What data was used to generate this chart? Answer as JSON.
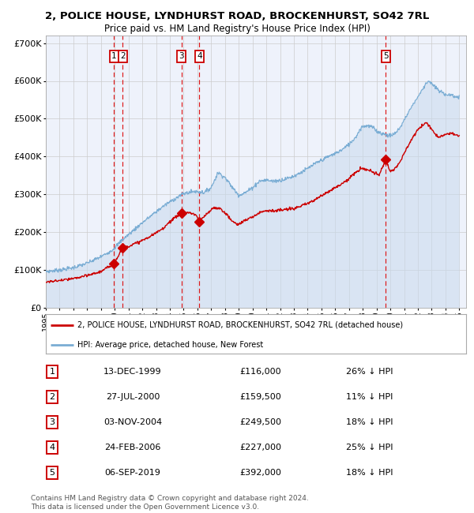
{
  "title": "2, POLICE HOUSE, LYNDHURST ROAD, BROCKENHURST, SO42 7RL",
  "subtitle": "Price paid vs. HM Land Registry's House Price Index (HPI)",
  "plot_bg_color": "#eef2fb",
  "grid_color": "#cccccc",
  "red_line_color": "#cc0000",
  "blue_line_color": "#7aadd4",
  "blue_fill_color": "#c8daee",
  "dashed_color": "#dd0000",
  "ylim": [
    0,
    720000
  ],
  "yticks": [
    0,
    100000,
    200000,
    300000,
    400000,
    500000,
    600000,
    700000
  ],
  "ytick_labels": [
    "£0",
    "£100K",
    "£200K",
    "£300K",
    "£400K",
    "£500K",
    "£600K",
    "£700K"
  ],
  "xmin": 1995.0,
  "xmax": 2025.5,
  "sales": [
    {
      "num": 1,
      "date": "13-DEC-1999",
      "price": 116000,
      "year_x": 1999.95,
      "label_price": "£116,000",
      "label_pct": "26% ↓ HPI"
    },
    {
      "num": 2,
      "date": "27-JUL-2000",
      "price": 159500,
      "year_x": 2000.57,
      "label_price": "£159,500",
      "label_pct": "11% ↓ HPI"
    },
    {
      "num": 3,
      "date": "03-NOV-2004",
      "price": 249500,
      "year_x": 2004.84,
      "label_price": "£249,500",
      "label_pct": "18% ↓ HPI"
    },
    {
      "num": 4,
      "date": "24-FEB-2006",
      "price": 227000,
      "year_x": 2006.14,
      "label_price": "£227,000",
      "label_pct": "25% ↓ HPI"
    },
    {
      "num": 5,
      "date": "06-SEP-2019",
      "price": 392000,
      "year_x": 2019.68,
      "label_price": "£392,000",
      "label_pct": "18% ↓ HPI"
    }
  ],
  "legend_red_label": "2, POLICE HOUSE, LYNDHURST ROAD, BROCKENHURST, SO42 7RL (detached house)",
  "legend_blue_label": "HPI: Average price, detached house, New Forest",
  "footer_line1": "Contains HM Land Registry data © Crown copyright and database right 2024.",
  "footer_line2": "This data is licensed under the Open Government Licence v3.0."
}
